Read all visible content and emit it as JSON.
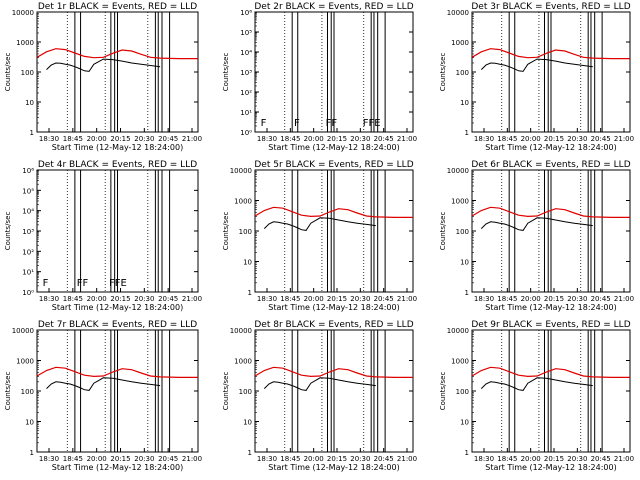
{
  "chart_data": [
    {
      "type": "line",
      "title": "Det 1r BLACK = Events, RED = LLD",
      "xlabel": "Start Time (12-May-12 18:24:00)",
      "ylabel": "Counts/sec",
      "yscale": "log",
      "ylim": [
        1,
        10000
      ],
      "ytick_labels": [
        "1",
        "10",
        "100",
        "1000",
        "10000"
      ],
      "xlim": [
        0,
        170
      ],
      "xtick_labels": [
        "18:30",
        "18:45",
        "20:00",
        "20:15",
        "20:30",
        "20:45",
        "21:00"
      ],
      "flags": []
    },
    {
      "type": "line",
      "title": "Det 2r BLACK = Events, RED = LLD",
      "xlabel": "Start Time (12-May-12 18:24:00)",
      "ylabel": "Counts/sec",
      "yscale": "log",
      "ylim": [
        1,
        1000000
      ],
      "ytick_labels": [
        "10⁰",
        "10¹",
        "10²",
        "10³",
        "10⁴",
        "10⁵",
        "10⁶"
      ],
      "xlim": [
        0,
        170
      ],
      "xtick_labels": [
        "18:30",
        "18:45",
        "20:00",
        "20:15",
        "20:30",
        "20:45",
        "21:00"
      ],
      "flags": [
        "F",
        "F",
        "FF",
        "FFE"
      ]
    },
    {
      "type": "line",
      "title": "Det 3r BLACK = Events, RED = LLD",
      "xlabel": "Start Time (12-May-12 18:24:00)",
      "ylabel": "Counts/sec",
      "yscale": "log",
      "ylim": [
        1,
        10000
      ],
      "ytick_labels": [
        "1",
        "10",
        "100",
        "1000",
        "10000"
      ],
      "xlim": [
        0,
        170
      ],
      "xtick_labels": [
        "18:30",
        "18:45",
        "20:00",
        "20:15",
        "20:30",
        "20:45",
        "21:00"
      ],
      "flags": []
    },
    {
      "type": "line",
      "title": "Det 4r BLACK = Events, RED = LLD",
      "xlabel": "Start Time (12-May-12 18:24:00)",
      "ylabel": "Counts/sec",
      "yscale": "log",
      "ylim": [
        1,
        1000000
      ],
      "ytick_labels": [
        "10⁰",
        "10¹",
        "10²",
        "10³",
        "10⁴",
        "10⁵",
        "10⁶"
      ],
      "xlim": [
        0,
        170
      ],
      "xtick_labels": [
        "18:30",
        "18:45",
        "20:00",
        "20:15",
        "20:30",
        "20:45",
        "21:00"
      ],
      "flags": [
        "F",
        "FF",
        "FFE"
      ]
    },
    {
      "type": "line",
      "title": "Det 5r BLACK = Events, RED = LLD",
      "xlabel": "Start Time (12-May-12 18:24:00)",
      "ylabel": "Counts/sec",
      "yscale": "log",
      "ylim": [
        1,
        10000
      ],
      "ytick_labels": [
        "1",
        "10",
        "100",
        "1000",
        "10000"
      ],
      "xlim": [
        0,
        170
      ],
      "xtick_labels": [
        "18:30",
        "18:45",
        "20:00",
        "20:15",
        "20:30",
        "20:45",
        "21:00"
      ],
      "flags": []
    },
    {
      "type": "line",
      "title": "Det 6r BLACK = Events, RED = LLD",
      "xlabel": "Start Time (12-May-12 18:24:00)",
      "ylabel": "Counts/sec",
      "yscale": "log",
      "ylim": [
        1,
        10000
      ],
      "ytick_labels": [
        "1",
        "10",
        "100",
        "1000",
        "10000"
      ],
      "xlim": [
        0,
        170
      ],
      "xtick_labels": [
        "18:30",
        "18:45",
        "20:00",
        "20:15",
        "20:30",
        "20:45",
        "21:00"
      ],
      "flags": []
    },
    {
      "type": "line",
      "title": "Det 7r BLACK = Events, RED = LLD",
      "xlabel": "Start Time (12-May-12 18:24:00)",
      "ylabel": "Counts/sec",
      "yscale": "log",
      "ylim": [
        1,
        10000
      ],
      "ytick_labels": [
        "1",
        "10",
        "100",
        "1000",
        "10000"
      ],
      "xlim": [
        0,
        170
      ],
      "xtick_labels": [
        "18:30",
        "18:45",
        "20:00",
        "20:15",
        "20:30",
        "20:45",
        "21:00"
      ],
      "flags": []
    },
    {
      "type": "line",
      "title": "Det 8r BLACK = Events, RED = LLD",
      "xlabel": "Start Time (12-May-12 18:24:00)",
      "ylabel": "Counts/sec",
      "yscale": "log",
      "ylim": [
        1,
        10000
      ],
      "ytick_labels": [
        "1",
        "10",
        "100",
        "1000",
        "10000"
      ],
      "xlim": [
        0,
        170
      ],
      "xtick_labels": [
        "18:30",
        "18:45",
        "20:00",
        "20:15",
        "20:30",
        "20:45",
        "21:00"
      ],
      "flags": []
    },
    {
      "type": "line",
      "title": "Det 9r BLACK = Events, RED = LLD",
      "xlabel": "Start Time (12-May-12 18:24:00)",
      "ylabel": "Counts/sec",
      "yscale": "log",
      "ylim": [
        1,
        10000
      ],
      "ytick_labels": [
        "1",
        "10",
        "100",
        "1000",
        "10000"
      ],
      "xlim": [
        0,
        170
      ],
      "xtick_labels": [
        "18:30",
        "18:45",
        "20:00",
        "20:15",
        "20:30",
        "20:45",
        "21:00"
      ],
      "flags": []
    }
  ],
  "common": {
    "red_series": {
      "name": "LLD",
      "color": "#e00000",
      "x": [
        0,
        10,
        20,
        30,
        40,
        50,
        60,
        70,
        80,
        90,
        100,
        110,
        120,
        130,
        140,
        150,
        160,
        170
      ],
      "y": [
        310,
        470,
        600,
        560,
        430,
        330,
        300,
        310,
        420,
        540,
        500,
        390,
        310,
        290,
        285,
        280,
        280,
        280
      ]
    },
    "black_series": {
      "name": "Events",
      "color": "#000000",
      "x": [
        10,
        15,
        20,
        25,
        30,
        35,
        40,
        45,
        50,
        55,
        60,
        65,
        70,
        80,
        90,
        100,
        110,
        120,
        130
      ],
      "y": [
        120,
        170,
        200,
        195,
        180,
        170,
        150,
        130,
        110,
        105,
        180,
        220,
        270,
        260,
        230,
        200,
        180,
        165,
        150
      ]
    },
    "dotted_x": [
      32,
      72,
      117
    ],
    "vertical_lines_x": [
      40,
      46,
      78,
      82,
      85,
      125,
      128,
      132,
      140
    ]
  }
}
